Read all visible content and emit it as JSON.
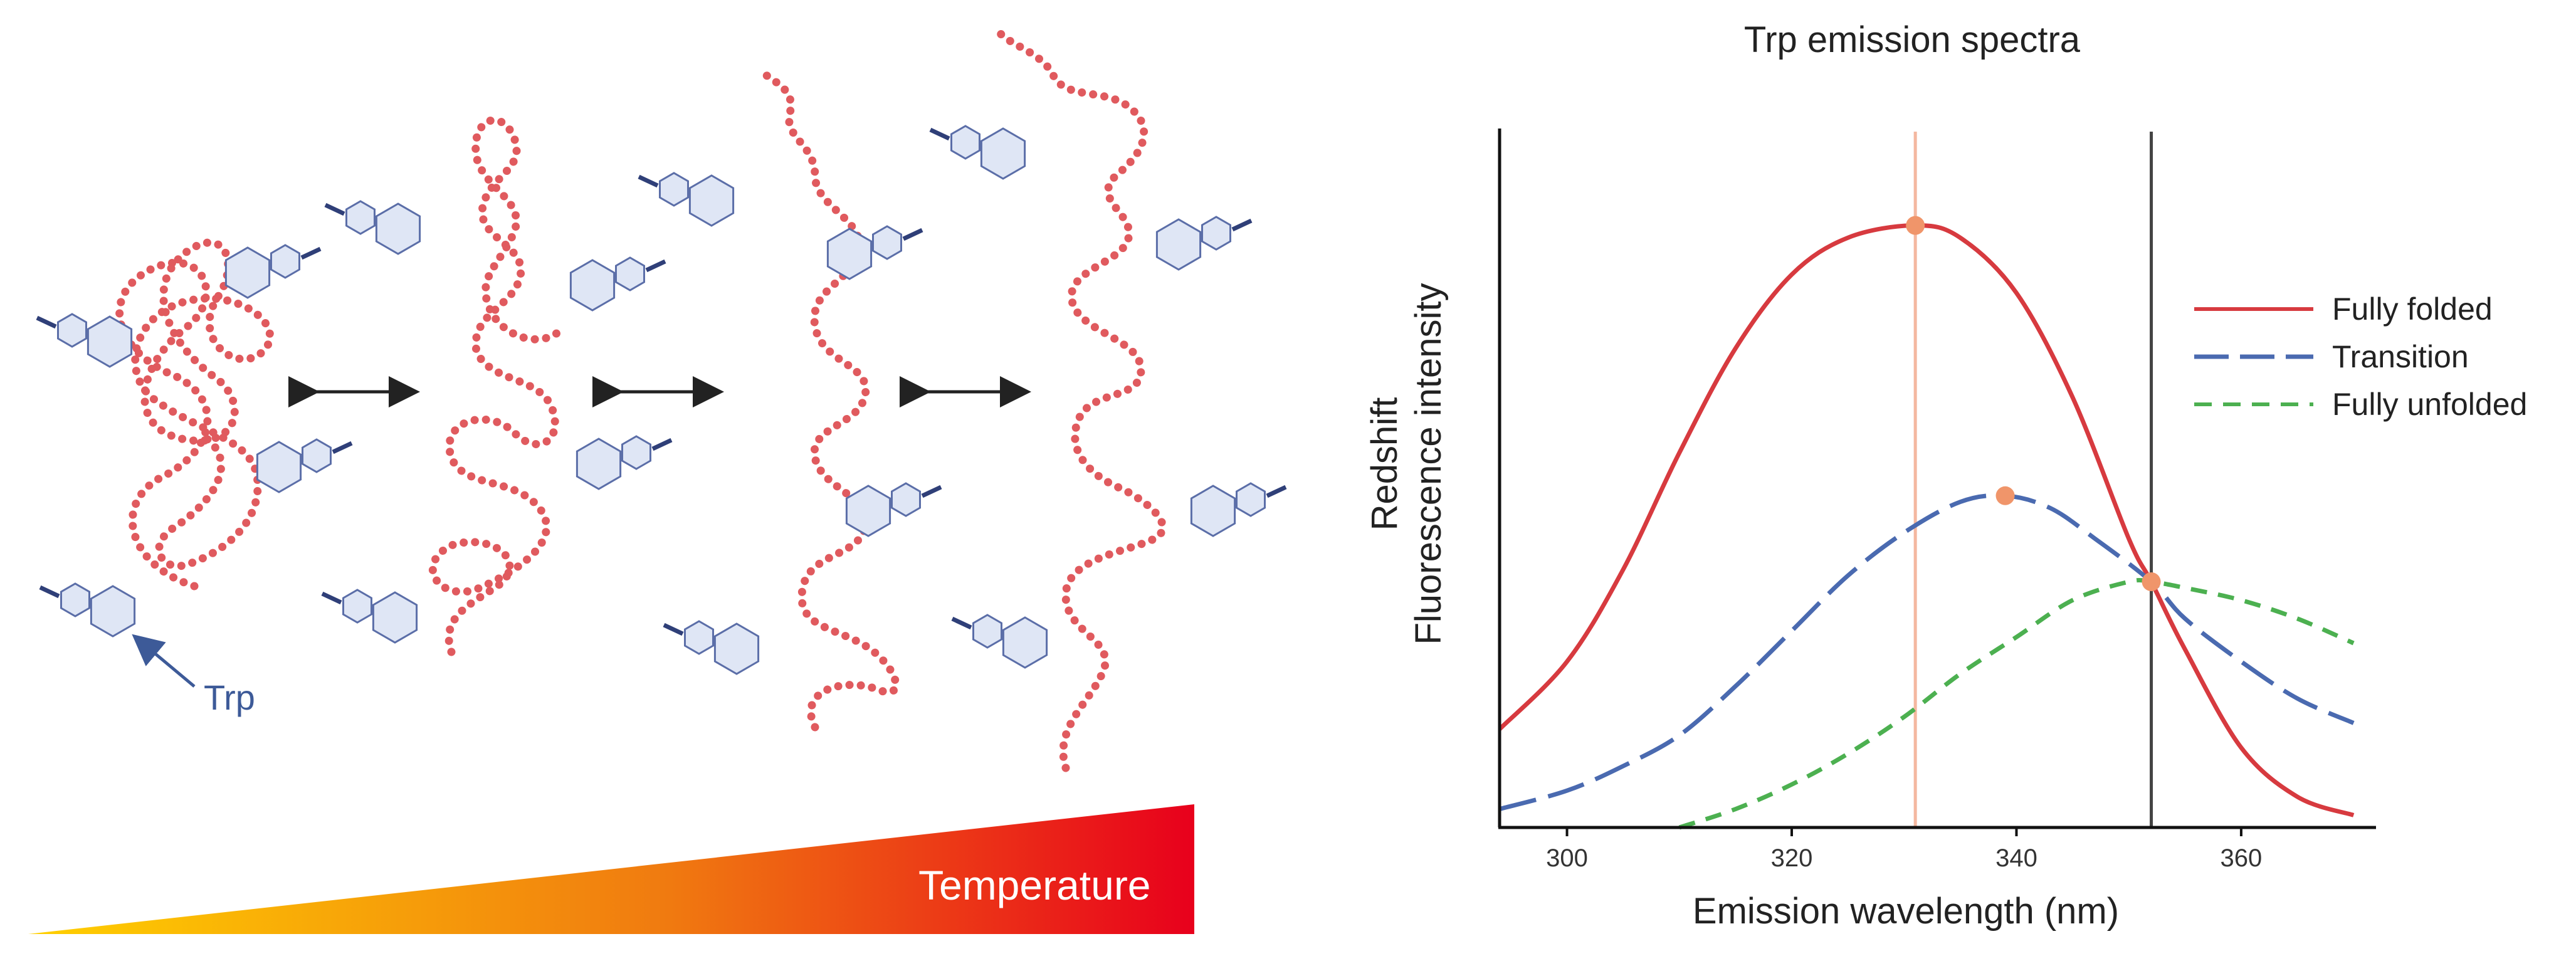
{
  "illustration": {
    "trp_label": "Trp",
    "temperature_label": "Temperature",
    "colors": {
      "chain": "#e05a5e",
      "ring_fill": "#dfe6f5",
      "ring_stroke": "#5b6ea8",
      "arrow": "#222222",
      "gradient_start": "#ffd000",
      "gradient_mid": "#f07a10",
      "gradient_end": "#e8001c"
    }
  },
  "chart_data": {
    "type": "line",
    "title": "Trp emission spectra",
    "xlabel": "Emission wavelength (nm)",
    "ylabel_lines": [
      "Redshift",
      "Fluorescence intensity"
    ],
    "xlim": [
      294,
      372
    ],
    "ylim": [
      0,
      1
    ],
    "xticks": [
      300,
      320,
      340,
      360
    ],
    "grid": false,
    "legend_position": "right",
    "series": [
      {
        "name": "Fully folded",
        "color": "#d73a3f",
        "style": "solid",
        "x": [
          294,
          300,
          305,
          310,
          315,
          320,
          325,
          331,
          335,
          340,
          345,
          350,
          352,
          355,
          360,
          365,
          370
        ],
        "y": [
          0.16,
          0.27,
          0.42,
          0.61,
          0.78,
          0.9,
          0.96,
          0.98,
          0.96,
          0.87,
          0.7,
          0.47,
          0.4,
          0.29,
          0.13,
          0.05,
          0.02
        ]
      },
      {
        "name": "Transition",
        "color": "#4a6ab0",
        "style": "longdash",
        "x": [
          294,
          300,
          305,
          310,
          315,
          320,
          325,
          330,
          335,
          339,
          343,
          347,
          352,
          355,
          360,
          365,
          370
        ],
        "y": [
          0.03,
          0.06,
          0.1,
          0.15,
          0.23,
          0.32,
          0.41,
          0.48,
          0.53,
          0.54,
          0.52,
          0.47,
          0.4,
          0.34,
          0.27,
          0.21,
          0.17
        ]
      },
      {
        "name": "Fully unfolded",
        "color": "#4cb050",
        "style": "dash",
        "x": [
          310,
          315,
          320,
          325,
          330,
          335,
          340,
          345,
          350,
          352,
          355,
          360,
          365,
          370
        ],
        "y": [
          0.0,
          0.03,
          0.07,
          0.12,
          0.18,
          0.25,
          0.31,
          0.37,
          0.4,
          0.4,
          0.39,
          0.37,
          0.34,
          0.3
        ]
      }
    ],
    "markers": [
      {
        "x": 331,
        "y": 0.98,
        "color": "#f0956a"
      },
      {
        "x": 339,
        "y": 0.54,
        "color": "#f0956a"
      },
      {
        "x": 352,
        "y": 0.4,
        "color": "#f0956a"
      }
    ],
    "vlines": [
      {
        "x": 331,
        "color": "#f4b8a0"
      },
      {
        "x": 352,
        "color": "#444444"
      }
    ]
  }
}
